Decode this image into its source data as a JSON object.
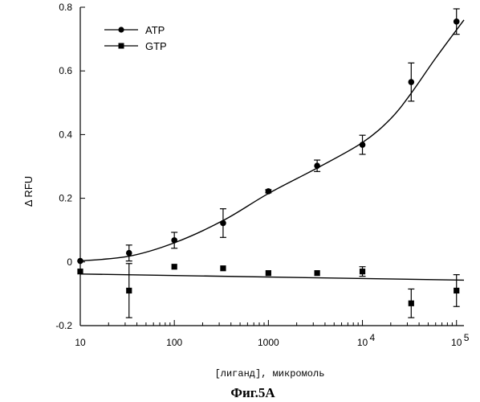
{
  "chart_data": {
    "type": "scatter",
    "x_scale": "log",
    "xlim": [
      10,
      120000
    ],
    "ylim": [
      -0.2,
      0.8
    ],
    "xticks": [
      10,
      100,
      1000,
      10000,
      100000
    ],
    "xtick_labels": [
      "10",
      "100",
      "1000",
      "10^4",
      "10^5"
    ],
    "yticks": [
      -0.2,
      0,
      0.2,
      0.4,
      0.6,
      0.8
    ],
    "ytick_labels": [
      "-0.2",
      "0",
      "0.2",
      "0.4",
      "0.6",
      "0.8"
    ],
    "xlabel": "[лиганд], микромоль",
    "ylabel": "Δ RFU",
    "legend_position": "top-left",
    "grid": false,
    "series": [
      {
        "name": "ATP",
        "marker": "circle",
        "x": [
          10,
          33,
          100,
          330,
          1000,
          3300,
          10000,
          33000,
          100000
        ],
        "y": [
          0.003,
          0.028,
          0.068,
          0.122,
          0.222,
          0.302,
          0.368,
          0.565,
          0.755
        ],
        "err": [
          0.0,
          0.025,
          0.025,
          0.045,
          0.005,
          0.018,
          0.03,
          0.06,
          0.04
        ],
        "fit": [
          [
            10,
            0.003
          ],
          [
            33,
            0.018
          ],
          [
            100,
            0.06
          ],
          [
            330,
            0.13
          ],
          [
            1000,
            0.215
          ],
          [
            3300,
            0.295
          ],
          [
            10000,
            0.375
          ],
          [
            20000,
            0.45
          ],
          [
            33000,
            0.53
          ],
          [
            60000,
            0.64
          ],
          [
            120000,
            0.76
          ]
        ]
      },
      {
        "name": "GTP",
        "marker": "square",
        "x": [
          10,
          33,
          100,
          330,
          1000,
          3300,
          10000,
          33000,
          100000
        ],
        "y": [
          -0.03,
          -0.09,
          -0.015,
          -0.02,
          -0.035,
          -0.035,
          -0.03,
          -0.13,
          -0.09
        ],
        "err": [
          0.0,
          0.085,
          0.0,
          0.0,
          0.0,
          0.0,
          0.015,
          0.045,
          0.05
        ],
        "fit": [
          [
            10,
            -0.038
          ],
          [
            120000,
            -0.057
          ]
        ]
      }
    ],
    "caption": "Фиг.5А"
  }
}
